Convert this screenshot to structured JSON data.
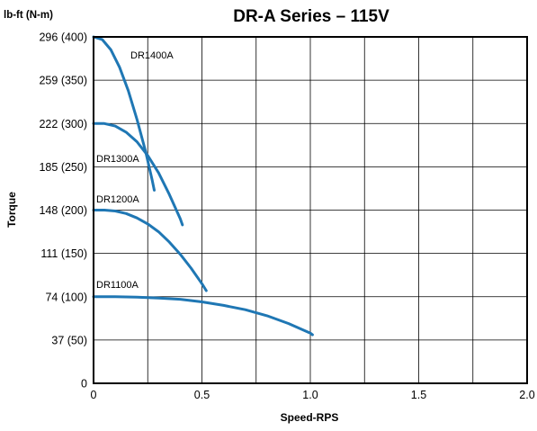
{
  "chart_data": {
    "type": "line",
    "title": "DR-A Series – 115V",
    "unit_header": "lb-ft  (N-m)",
    "xlabel": "Speed-RPS",
    "ylabel": "Torque",
    "xlim": [
      0,
      2.0
    ],
    "ylim": [
      0,
      400
    ],
    "y_unit": "N-m",
    "grid": true,
    "x_ticks": [
      {
        "value": 0,
        "label": "0"
      },
      {
        "value": 0.5,
        "label": "0.5"
      },
      {
        "value": 1.0,
        "label": "1.0"
      },
      {
        "value": 1.5,
        "label": "1.5"
      },
      {
        "value": 2.0,
        "label": "2.0"
      }
    ],
    "x_grid_values": [
      0.25,
      0.5,
      0.75,
      1.0,
      1.25,
      1.5,
      1.75
    ],
    "y_ticks": [
      {
        "value": 0,
        "label": "0"
      },
      {
        "value": 50,
        "label": "37  (50)"
      },
      {
        "value": 100,
        "label": "74  (100)"
      },
      {
        "value": 150,
        "label": "111  (150)"
      },
      {
        "value": 200,
        "label": "148  (200)"
      },
      {
        "value": 250,
        "label": "185  (250)"
      },
      {
        "value": 300,
        "label": "222  (300)"
      },
      {
        "value": 350,
        "label": "259  (350)"
      },
      {
        "value": 400,
        "label": "296  (400)"
      }
    ],
    "series_color": "#1f77b4",
    "series": [
      {
        "name": "DR1400A",
        "x": [
          0,
          0.04,
          0.08,
          0.12,
          0.16,
          0.2,
          0.24,
          0.27,
          0.28
        ],
        "y": [
          400,
          397,
          385,
          365,
          338,
          305,
          268,
          235,
          223
        ]
      },
      {
        "name": "DR1300A",
        "x": [
          0,
          0.05,
          0.1,
          0.15,
          0.2,
          0.25,
          0.3,
          0.35,
          0.4,
          0.41
        ],
        "y": [
          300,
          300,
          297,
          290,
          279,
          263,
          243,
          218,
          190,
          183
        ]
      },
      {
        "name": "DR1200A",
        "x": [
          0,
          0.05,
          0.1,
          0.15,
          0.2,
          0.25,
          0.3,
          0.35,
          0.4,
          0.45,
          0.5,
          0.52
        ],
        "y": [
          200,
          200,
          199,
          196,
          191,
          184,
          175,
          163,
          149,
          133,
          115,
          107
        ]
      },
      {
        "name": "DR1100A",
        "x": [
          0,
          0.1,
          0.2,
          0.3,
          0.4,
          0.5,
          0.6,
          0.7,
          0.8,
          0.9,
          1.0,
          1.01
        ],
        "y": [
          100,
          100,
          99.5,
          98.5,
          97,
          94,
          90,
          85,
          78,
          69,
          58,
          56
        ]
      }
    ]
  }
}
